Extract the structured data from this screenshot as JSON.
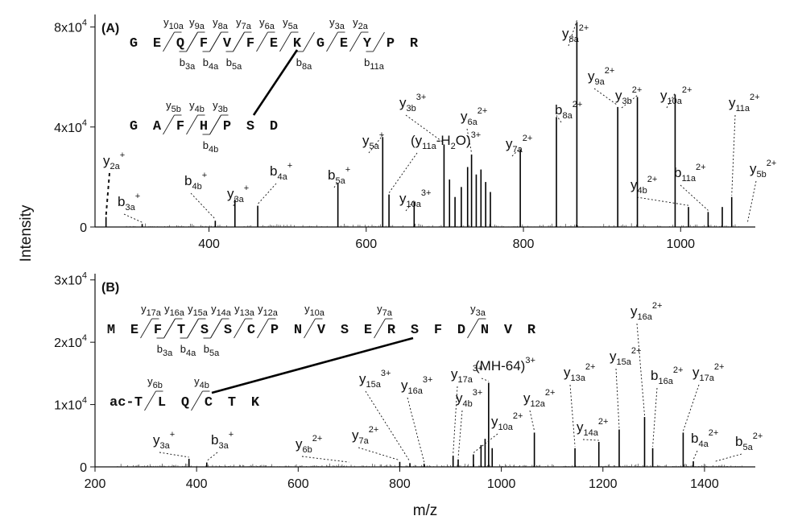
{
  "chart_data": [
    {
      "type": "bar",
      "panel_label": "(A)",
      "xlim": [
        255,
        1095
      ],
      "ylim": [
        0,
        85000
      ],
      "y_ticks": [
        {
          "value": 0,
          "label": "0"
        },
        {
          "value": 40000,
          "label": "4x10",
          "exp": "4"
        },
        {
          "value": 80000,
          "label": "8x10",
          "exp": "4"
        }
      ],
      "x_ticks": [
        {
          "value": 400,
          "label": "400"
        },
        {
          "value": 600,
          "label": "600"
        },
        {
          "value": 800,
          "label": "800"
        },
        {
          "value": 1000,
          "label": "1000"
        }
      ],
      "peaks": [
        {
          "mz": 269,
          "intensity": 4000
        },
        {
          "mz": 315,
          "intensity": 1200
        },
        {
          "mz": 408,
          "intensity": 2500
        },
        {
          "mz": 433,
          "intensity": 11000
        },
        {
          "mz": 462,
          "intensity": 8500
        },
        {
          "mz": 564,
          "intensity": 17500
        },
        {
          "mz": 621,
          "intensity": 36000
        },
        {
          "mz": 629,
          "intensity": 13000
        },
        {
          "mz": 661,
          "intensity": 10000
        },
        {
          "mz": 699,
          "intensity": 33000
        },
        {
          "mz": 706,
          "intensity": 19000
        },
        {
          "mz": 713,
          "intensity": 12000
        },
        {
          "mz": 721,
          "intensity": 16000
        },
        {
          "mz": 729,
          "intensity": 24000
        },
        {
          "mz": 734,
          "intensity": 29000
        },
        {
          "mz": 740,
          "intensity": 21000
        },
        {
          "mz": 746,
          "intensity": 23000
        },
        {
          "mz": 752,
          "intensity": 18000
        },
        {
          "mz": 758,
          "intensity": 14000
        },
        {
          "mz": 796,
          "intensity": 31000
        },
        {
          "mz": 842,
          "intensity": 44000
        },
        {
          "mz": 868,
          "intensity": 82000
        },
        {
          "mz": 920,
          "intensity": 48000
        },
        {
          "mz": 945,
          "intensity": 52000
        },
        {
          "mz": 993,
          "intensity": 53000
        },
        {
          "mz": 1010,
          "intensity": 8000
        },
        {
          "mz": 1035,
          "intensity": 6000
        },
        {
          "mz": 1053,
          "intensity": 8000
        },
        {
          "mz": 1065,
          "intensity": 12000
        }
      ],
      "peptide1": {
        "letters": [
          "G",
          "E",
          "Q",
          "F",
          "V",
          "F",
          "E",
          "K",
          "G",
          "E",
          "Y",
          "P",
          "R"
        ]
      },
      "peptide2": {
        "letters": [
          "G",
          "A",
          "F",
          "H",
          "P",
          "S",
          "D"
        ]
      },
      "seq_y_labels": [
        {
          "main": "y",
          "sub": "10a",
          "after": 1
        },
        {
          "main": "y",
          "sub": "9a",
          "after": 2
        },
        {
          "main": "y",
          "sub": "8a",
          "after": 3
        },
        {
          "main": "y",
          "sub": "7a",
          "after": 4
        },
        {
          "main": "y",
          "sub": "6a",
          "after": 5
        },
        {
          "main": "y",
          "sub": "5a",
          "after": 6
        },
        {
          "main": "y",
          "sub": "3a",
          "after": 8
        },
        {
          "main": "y",
          "sub": "2a",
          "after": 9
        }
      ],
      "seq_b_labels": [
        {
          "main": "b",
          "sub": "3a",
          "after": 2
        },
        {
          "main": "b",
          "sub": "4a",
          "after": 3
        },
        {
          "main": "b",
          "sub": "5a",
          "after": 4
        },
        {
          "main": "b",
          "sub": "8a",
          "after": 7
        },
        {
          "main": "b",
          "sub": "11a",
          "after": 10
        }
      ],
      "seq2_y_labels": [
        {
          "main": "y",
          "sub": "5b",
          "after": 1
        },
        {
          "main": "y",
          "sub": "4b",
          "after": 2
        },
        {
          "main": "y",
          "sub": "3b",
          "after": 3
        }
      ],
      "seq2_b_labels": [
        {
          "main": "b",
          "sub": "4b",
          "after": 3
        }
      ],
      "annotations": [
        {
          "main": "y",
          "sub": "2a",
          "sup": "+",
          "mz": 269,
          "intensity": 4000
        },
        {
          "main": "b",
          "sub": "3a",
          "sup": "+",
          "mz": 315,
          "intensity": 1200
        },
        {
          "main": "b",
          "sub": "4b",
          "sup": "+",
          "mz": 408,
          "intensity": 2500
        },
        {
          "main": "y",
          "sub": "3a",
          "sup": "+",
          "mz": 433,
          "intensity": 11000
        },
        {
          "main": "b",
          "sub": "4a",
          "sup": "+",
          "mz": 462,
          "intensity": 8500
        },
        {
          "main": "b",
          "sub": "5a",
          "sup": "+",
          "mz": 564,
          "intensity": 17500
        },
        {
          "main": "y",
          "sub": "5a",
          "sup": "+",
          "mz": 621,
          "intensity": 36000
        },
        {
          "main": "(y",
          "sub": "11a",
          "tail": "-H",
          "sub2": "2",
          "tail2": "O)",
          "sup": "3+",
          "mz": 629,
          "intensity": 13000
        },
        {
          "main": "y",
          "sub": "10a",
          "sup": "3+",
          "mz": 661,
          "intensity": 10000
        },
        {
          "main": "y",
          "sub": "3b",
          "sup": "3+",
          "mz": 699,
          "intensity": 33000
        },
        {
          "main": "y",
          "sub": "6a",
          "sup": "2+",
          "mz": 734,
          "intensity": 29000
        },
        {
          "main": "y",
          "sub": "7a",
          "sup": "2+",
          "mz": 796,
          "intensity": 31000
        },
        {
          "main": "b",
          "sub": "8a",
          "sup": "2+",
          "mz": 842,
          "intensity": 44000
        },
        {
          "main": "y",
          "sub": "8a",
          "sup": "2+",
          "mz": 868,
          "intensity": 82000
        },
        {
          "main": "y",
          "sub": "9a",
          "sup": "2+",
          "mz": 920,
          "intensity": 48000
        },
        {
          "main": "y",
          "sub": "3b",
          "sup": "2+",
          "mz": 945,
          "intensity": 52000
        },
        {
          "main": "y",
          "sub": "10a",
          "sup": "2+",
          "mz": 993,
          "intensity": 53000
        },
        {
          "main": "y",
          "sub": "4b",
          "sup": "2+",
          "mz": 1010,
          "intensity": 8000
        },
        {
          "main": "b",
          "sub": "11a",
          "sup": "2+",
          "mz": 1035,
          "intensity": 6000
        },
        {
          "main": "y",
          "sub": "11a",
          "sup": "2+",
          "mz": 1065,
          "intensity": 12000
        },
        {
          "main": "y",
          "sub": "5b",
          "sup": "2+",
          "mz": 1085,
          "intensity": 1000
        }
      ]
    },
    {
      "type": "bar",
      "panel_label": "(B)",
      "xlim": [
        200,
        1500
      ],
      "ylim": [
        0,
        31000
      ],
      "xlabel": "m/z",
      "y_ticks": [
        {
          "value": 0,
          "label": "0"
        },
        {
          "value": 10000,
          "label": "1x10",
          "exp": "4"
        },
        {
          "value": 20000,
          "label": "2x10",
          "exp": "4"
        },
        {
          "value": 30000,
          "label": "3x10",
          "exp": "4"
        }
      ],
      "x_ticks": [
        {
          "value": 200,
          "label": "200"
        },
        {
          "value": 400,
          "label": "400"
        },
        {
          "value": 600,
          "label": "600"
        },
        {
          "value": 800,
          "label": "800"
        },
        {
          "value": 1000,
          "label": "1000"
        },
        {
          "value": 1200,
          "label": "1200"
        },
        {
          "value": 1400,
          "label": "1400"
        }
      ],
      "peaks": [
        {
          "mz": 385,
          "intensity": 1300
        },
        {
          "mz": 420,
          "intensity": 700
        },
        {
          "mz": 800,
          "intensity": 800
        },
        {
          "mz": 820,
          "intensity": 600
        },
        {
          "mz": 848,
          "intensity": 500
        },
        {
          "mz": 905,
          "intensity": 1800
        },
        {
          "mz": 915,
          "intensity": 1200
        },
        {
          "mz": 945,
          "intensity": 2000
        },
        {
          "mz": 960,
          "intensity": 3500
        },
        {
          "mz": 968,
          "intensity": 4500
        },
        {
          "mz": 975,
          "intensity": 13500
        },
        {
          "mz": 982,
          "intensity": 3000
        },
        {
          "mz": 1065,
          "intensity": 5500
        },
        {
          "mz": 1145,
          "intensity": 3000
        },
        {
          "mz": 1192,
          "intensity": 4000
        },
        {
          "mz": 1232,
          "intensity": 6000
        },
        {
          "mz": 1282,
          "intensity": 8000
        },
        {
          "mz": 1298,
          "intensity": 3000
        },
        {
          "mz": 1358,
          "intensity": 5500
        },
        {
          "mz": 1378,
          "intensity": 900
        }
      ],
      "peptide1": {
        "letters": [
          "M",
          "E",
          "F",
          "T",
          "S",
          "S",
          "C",
          "P",
          "N",
          "V",
          "S",
          "E",
          "R",
          "S",
          "F",
          "D",
          "N",
          "V",
          "R"
        ]
      },
      "peptide2": {
        "prefix": "ac-",
        "letters": [
          "T",
          "L",
          "Q",
          "C",
          "T",
          "K"
        ]
      },
      "seq_y_labels": [
        {
          "main": "y",
          "sub": "17a",
          "after": 1
        },
        {
          "main": "y",
          "sub": "16a",
          "after": 2
        },
        {
          "main": "y",
          "sub": "15a",
          "after": 3
        },
        {
          "main": "y",
          "sub": "14a",
          "after": 4
        },
        {
          "main": "y",
          "sub": "13a",
          "after": 5
        },
        {
          "main": "y",
          "sub": "12a",
          "after": 6
        },
        {
          "main": "y",
          "sub": "10a",
          "after": 8
        },
        {
          "main": "y",
          "sub": "7a",
          "after": 11
        },
        {
          "main": "y",
          "sub": "3a",
          "after": 15
        }
      ],
      "seq_b_labels": [
        {
          "main": "b",
          "sub": "3a",
          "after": 2
        },
        {
          "main": "b",
          "sub": "4a",
          "after": 3
        },
        {
          "main": "b",
          "sub": "5a",
          "after": 4
        }
      ],
      "seq2_y_labels": [
        {
          "main": "y",
          "sub": "6b",
          "after": 0
        },
        {
          "main": "y",
          "sub": "4b",
          "after": 2
        }
      ],
      "seq2_b_labels": [],
      "annotations": [
        {
          "main": "y",
          "sub": "3a",
          "sup": "+",
          "mz": 385,
          "intensity": 1300
        },
        {
          "main": "b",
          "sub": "3a",
          "sup": "+",
          "mz": 420,
          "intensity": 700
        },
        {
          "main": "y",
          "sub": "6b",
          "sup": "2+",
          "mz": 700,
          "intensity": 500
        },
        {
          "main": "y",
          "sub": "7a",
          "sup": "2+",
          "mz": 800,
          "intensity": 800
        },
        {
          "main": "y",
          "sub": "15a",
          "sup": "3+",
          "mz": 820,
          "intensity": 600
        },
        {
          "main": "y",
          "sub": "16a",
          "sup": "3+",
          "mz": 848,
          "intensity": 500
        },
        {
          "main": "y",
          "sub": "17a",
          "sup": "3+",
          "mz": 905,
          "intensity": 1800
        },
        {
          "main": "y",
          "sub": "4b",
          "sup": "3+",
          "mz": 915,
          "intensity": 1200
        },
        {
          "main": "y",
          "sub": "10a",
          "sup": "2+",
          "mz": 945,
          "intensity": 2000
        },
        {
          "main": "(MH-64)",
          "sup": "3+",
          "mz": 975,
          "intensity": 13500
        },
        {
          "main": "y",
          "sub": "12a",
          "sup": "2+",
          "mz": 1065,
          "intensity": 5500
        },
        {
          "main": "y",
          "sub": "13a",
          "sup": "2+",
          "mz": 1145,
          "intensity": 3000
        },
        {
          "main": "y",
          "sub": "14a",
          "sup": "2+",
          "mz": 1192,
          "intensity": 4000
        },
        {
          "main": "y",
          "sub": "15a",
          "sup": "2+",
          "mz": 1232,
          "intensity": 6000
        },
        {
          "main": "y",
          "sub": "16a",
          "sup": "2+",
          "mz": 1282,
          "intensity": 8000
        },
        {
          "main": "b",
          "sub": "16a",
          "sup": "2+",
          "mz": 1298,
          "intensity": 3000
        },
        {
          "main": "y",
          "sub": "17a",
          "sup": "2+",
          "mz": 1358,
          "intensity": 5500
        },
        {
          "main": "b",
          "sub": "4a",
          "sup": "2+",
          "mz": 1378,
          "intensity": 900
        },
        {
          "main": "b",
          "sub": "5a",
          "sup": "2+",
          "mz": 1420,
          "intensity": 600
        }
      ]
    }
  ],
  "shared": {
    "ylabel": "Intensity"
  }
}
